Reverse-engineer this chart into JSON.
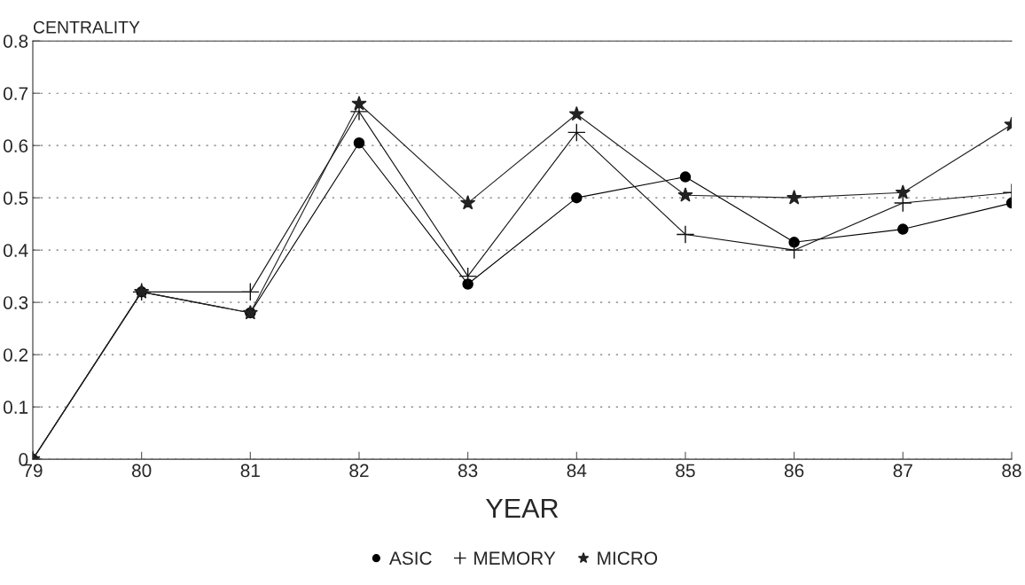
{
  "chart_data": {
    "type": "line",
    "xlabel": "YEAR",
    "ylabel": "CENTRALITY",
    "x": [
      79,
      80,
      81,
      82,
      83,
      84,
      85,
      86,
      87,
      88
    ],
    "series": [
      {
        "name": "ASIC",
        "color": "#000000",
        "marker": "circle",
        "values": [
          0,
          0.32,
          0.28,
          0.605,
          0.335,
          0.5,
          0.54,
          0.415,
          0.44,
          0.49
        ]
      },
      {
        "name": "MEMORY",
        "color": "#111111",
        "marker": "cross",
        "values": [
          0,
          0.32,
          0.32,
          0.665,
          0.35,
          0.625,
          0.43,
          0.4,
          0.49,
          0.51
        ]
      },
      {
        "name": "MICRO",
        "color": "#222222",
        "marker": "star",
        "values": [
          0,
          0.32,
          0.28,
          0.68,
          0.49,
          0.66,
          0.505,
          0.5,
          0.51,
          0.64
        ]
      }
    ],
    "xlim": [
      79,
      88
    ],
    "xticks": [
      79,
      80,
      81,
      82,
      83,
      84,
      85,
      86,
      87,
      88
    ],
    "ylim": [
      0,
      0.8
    ],
    "yticks": [
      0,
      0.1,
      0.2,
      0.3,
      0.4,
      0.5,
      0.6,
      0.7,
      0.8
    ],
    "grid": "y",
    "legend": "bottom",
    "line_style": "solid"
  }
}
